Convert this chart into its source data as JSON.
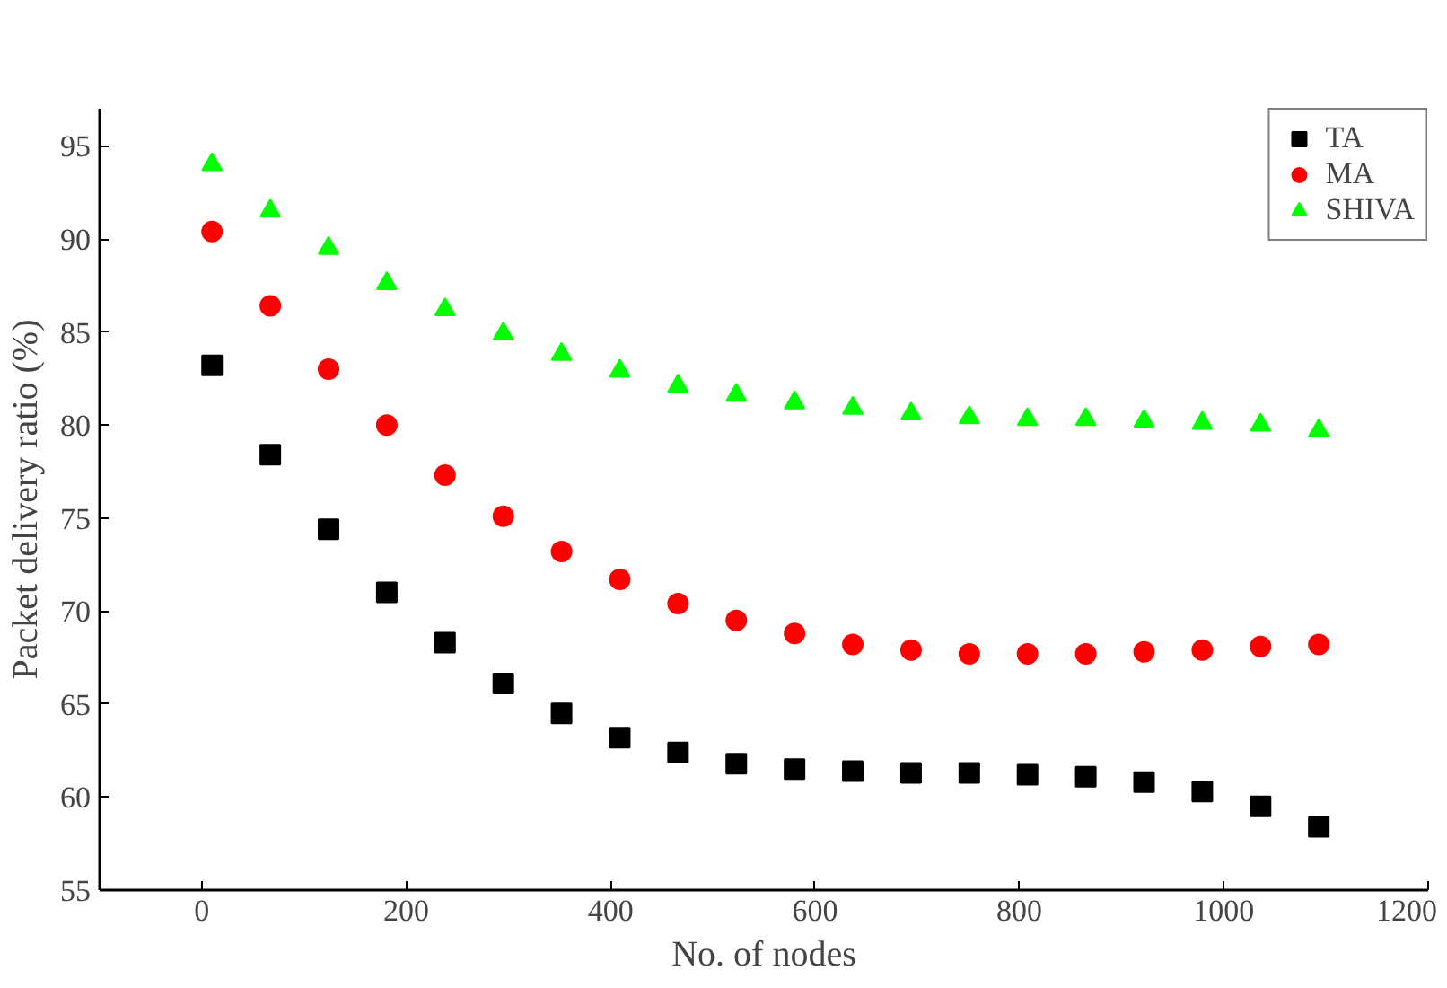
{
  "chart_data": {
    "type": "scatter",
    "xlabel": "No. of nodes",
    "ylabel": "Packet delivery ratio (%)",
    "x": [
      10,
      67,
      124,
      181,
      238,
      295,
      352,
      409,
      466,
      523,
      580,
      637,
      694,
      751,
      808,
      865,
      922,
      979,
      1036,
      1093
    ],
    "series": [
      {
        "name": "TA",
        "color": "#000000",
        "marker": "square",
        "values": [
          83.2,
          78.4,
          74.4,
          71.0,
          68.3,
          66.1,
          64.5,
          63.2,
          62.4,
          61.8,
          61.5,
          61.4,
          61.3,
          61.3,
          61.2,
          61.1,
          60.8,
          60.3,
          59.5,
          58.4
        ]
      },
      {
        "name": "MA",
        "color": "#ff0000",
        "marker": "circle",
        "values": [
          90.4,
          86.4,
          83.0,
          80.0,
          77.3,
          75.1,
          73.2,
          71.7,
          70.4,
          69.5,
          68.8,
          68.2,
          67.9,
          67.7,
          67.7,
          67.7,
          67.8,
          67.9,
          68.1,
          68.2
        ]
      },
      {
        "name": "SHIVA",
        "color": "#00ff00",
        "marker": "triangle",
        "values": [
          94.0,
          91.5,
          89.5,
          87.6,
          86.2,
          84.9,
          83.8,
          82.9,
          82.1,
          81.6,
          81.2,
          80.9,
          80.6,
          80.4,
          80.3,
          80.3,
          80.2,
          80.1,
          80.0,
          79.7
        ]
      }
    ],
    "xlim": [
      -100,
      1200
    ],
    "xticks": [
      0,
      200,
      400,
      600,
      800,
      1000,
      1200
    ],
    "ylim": [
      55,
      97
    ],
    "yticks": [
      55,
      60,
      65,
      70,
      75,
      80,
      85,
      90,
      95
    ],
    "grid": false,
    "legend": "top right"
  }
}
